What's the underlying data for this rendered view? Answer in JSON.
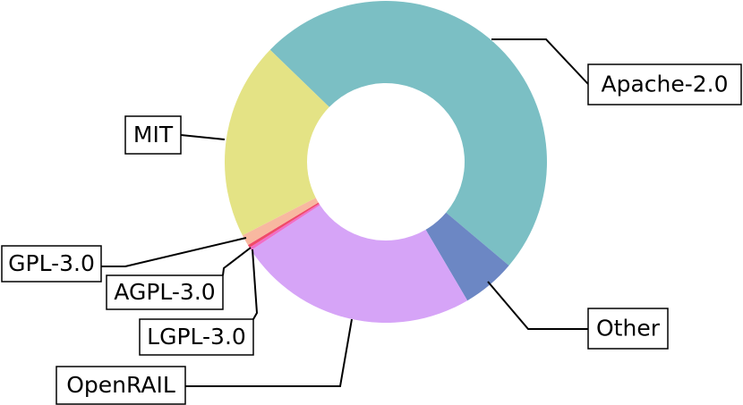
{
  "chart_data": {
    "type": "donut",
    "categories": [
      "Apache-2.0",
      "Other",
      "OpenRAIL",
      "LGPL-3.0",
      "AGPL-3.0",
      "GPL-3.0",
      "MIT"
    ],
    "values": [
      48.9,
      5.4,
      24.2,
      0.3,
      0.3,
      1.1,
      19.8
    ],
    "colors": [
      "#7bbfc4",
      "#6c87c4",
      "#d6a4f7",
      "#f06ec8",
      "#f04a6a",
      "#f8b8a0",
      "#e4e385"
    ]
  }
}
